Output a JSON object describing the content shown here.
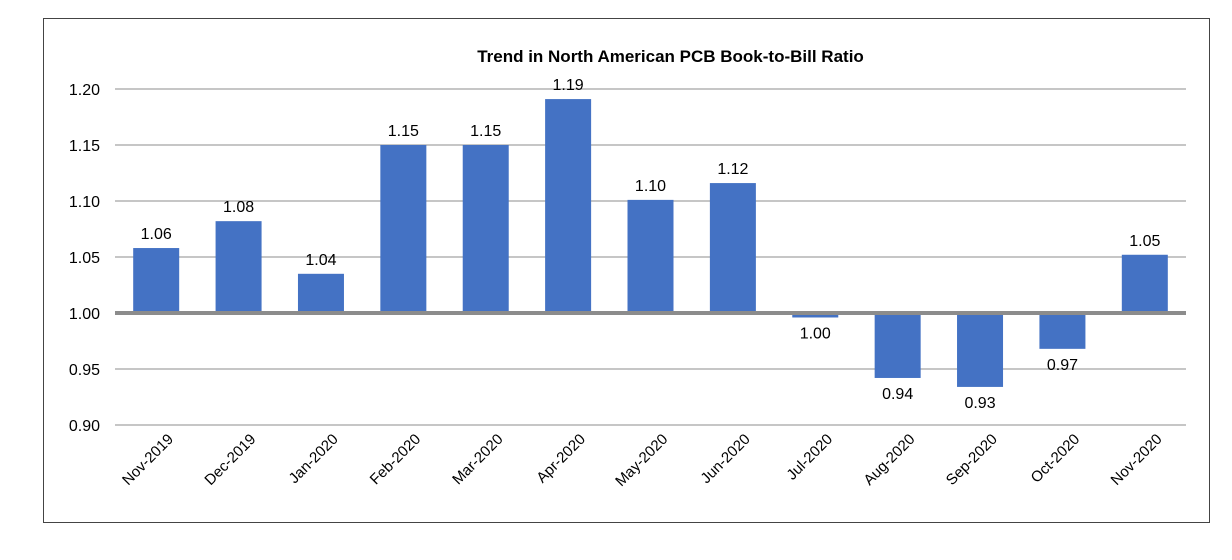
{
  "chart_data": {
    "type": "bar",
    "title": "Trend in North American PCB Book-to-Bill Ratio",
    "xlabel": "",
    "ylabel": "",
    "categories": [
      "Nov-2019",
      "Dec-2019",
      "Jan-2020",
      "Feb-2020",
      "Mar-2020",
      "Apr-2020",
      "May-2020",
      "Jun-2020",
      "Jul-2020",
      "Aug-2020",
      "Sep-2020",
      "Oct-2020",
      "Nov-2020"
    ],
    "values": [
      1.058,
      1.082,
      1.035,
      1.15,
      1.15,
      1.191,
      1.101,
      1.116,
      0.996,
      0.942,
      0.934,
      0.968,
      1.052
    ],
    "data_labels": [
      "1.06",
      "1.08",
      "1.04",
      "1.15",
      "1.15",
      "1.19",
      "1.10",
      "1.12",
      "1.00",
      "0.94",
      "0.93",
      "0.97",
      "1.05"
    ],
    "baseline": 1.0,
    "ylim": [
      0.9,
      1.2
    ],
    "yticks": [
      "0.90",
      "0.95",
      "1.00",
      "1.05",
      "1.10",
      "1.15",
      "1.20"
    ],
    "grid": true,
    "legend": "none",
    "colors": {
      "bar": "#4472C4",
      "grid": "#8c8c8c",
      "baseline": "#8c8c8c"
    }
  }
}
